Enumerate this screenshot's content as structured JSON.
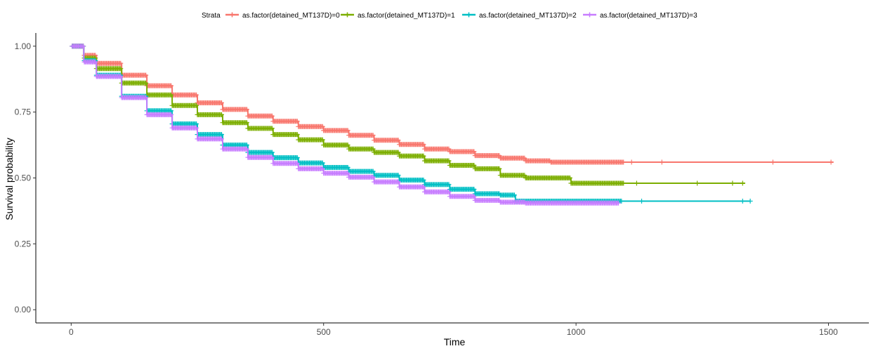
{
  "chart_data": {
    "type": "line",
    "subtype": "kaplan-meier step curves with censor marks",
    "xlabel": "Time",
    "ylabel": "Survival probability",
    "xlim": [
      -70,
      1580
    ],
    "ylim": [
      -0.05,
      1.05
    ],
    "x_ticks": [
      0,
      500,
      1000,
      1500
    ],
    "y_ticks": [
      0.0,
      0.25,
      0.5,
      0.75,
      1.0
    ],
    "y_tick_labels": [
      "0.00",
      "0.25",
      "0.50",
      "0.75",
      "1.00"
    ],
    "grid": false,
    "legend": {
      "title": "Strata",
      "position": "top",
      "entries": [
        "as.factor(detained_MT137D)=0",
        "as.factor(detained_MT137D)=1",
        "as.factor(detained_MT137D)=2",
        "as.factor(detained_MT137D)=3"
      ]
    },
    "series": [
      {
        "name": "as.factor(detained_MT137D)=0",
        "color": "#F8766D",
        "points": [
          [
            0,
            1.0
          ],
          [
            25,
            0.965
          ],
          [
            50,
            0.935
          ],
          [
            100,
            0.89
          ],
          [
            150,
            0.85
          ],
          [
            200,
            0.815
          ],
          [
            250,
            0.785
          ],
          [
            300,
            0.76
          ],
          [
            350,
            0.735
          ],
          [
            400,
            0.715
          ],
          [
            450,
            0.695
          ],
          [
            500,
            0.68
          ],
          [
            550,
            0.662
          ],
          [
            600,
            0.643
          ],
          [
            650,
            0.627
          ],
          [
            700,
            0.61
          ],
          [
            750,
            0.6
          ],
          [
            800,
            0.585
          ],
          [
            850,
            0.575
          ],
          [
            900,
            0.565
          ],
          [
            950,
            0.56
          ],
          [
            1000,
            0.56
          ],
          [
            1090,
            0.56
          ],
          [
            1510,
            0.56
          ]
        ],
        "dense_censor_end": 1095,
        "censor_x": [
          1110,
          1170,
          1390,
          1505
        ]
      },
      {
        "name": "as.factor(detained_MT137D)=1",
        "color": "#7CAE00",
        "points": [
          [
            0,
            1.0
          ],
          [
            25,
            0.955
          ],
          [
            50,
            0.915
          ],
          [
            100,
            0.86
          ],
          [
            150,
            0.815
          ],
          [
            200,
            0.775
          ],
          [
            250,
            0.74
          ],
          [
            300,
            0.71
          ],
          [
            350,
            0.688
          ],
          [
            400,
            0.665
          ],
          [
            450,
            0.645
          ],
          [
            500,
            0.625
          ],
          [
            550,
            0.61
          ],
          [
            600,
            0.597
          ],
          [
            650,
            0.583
          ],
          [
            700,
            0.565
          ],
          [
            750,
            0.548
          ],
          [
            800,
            0.535
          ],
          [
            850,
            0.51
          ],
          [
            900,
            0.5
          ],
          [
            980,
            0.5
          ],
          [
            990,
            0.48
          ],
          [
            1335,
            0.48
          ]
        ],
        "dense_censor_end": 1095,
        "censor_x": [
          1120,
          1240,
          1310,
          1330
        ]
      },
      {
        "name": "as.factor(detained_MT137D)=2",
        "color": "#00BFC4",
        "points": [
          [
            0,
            1.0
          ],
          [
            25,
            0.945
          ],
          [
            50,
            0.89
          ],
          [
            100,
            0.81
          ],
          [
            150,
            0.755
          ],
          [
            200,
            0.705
          ],
          [
            250,
            0.665
          ],
          [
            300,
            0.625
          ],
          [
            350,
            0.597
          ],
          [
            400,
            0.577
          ],
          [
            450,
            0.557
          ],
          [
            500,
            0.54
          ],
          [
            550,
            0.525
          ],
          [
            600,
            0.51
          ],
          [
            650,
            0.492
          ],
          [
            700,
            0.475
          ],
          [
            750,
            0.457
          ],
          [
            800,
            0.44
          ],
          [
            850,
            0.435
          ],
          [
            880,
            0.412
          ],
          [
            960,
            0.412
          ],
          [
            1345,
            0.412
          ]
        ],
        "dense_censor_end": 1090,
        "censor_x": [
          1130,
          1330,
          1345
        ]
      },
      {
        "name": "as.factor(detained_MT137D)=3",
        "color": "#C77CFF",
        "points": [
          [
            0,
            1.0
          ],
          [
            25,
            0.94
          ],
          [
            50,
            0.885
          ],
          [
            100,
            0.805
          ],
          [
            150,
            0.74
          ],
          [
            200,
            0.69
          ],
          [
            250,
            0.648
          ],
          [
            300,
            0.61
          ],
          [
            350,
            0.578
          ],
          [
            400,
            0.555
          ],
          [
            450,
            0.535
          ],
          [
            500,
            0.518
          ],
          [
            550,
            0.503
          ],
          [
            600,
            0.485
          ],
          [
            650,
            0.466
          ],
          [
            700,
            0.447
          ],
          [
            750,
            0.43
          ],
          [
            800,
            0.415
          ],
          [
            850,
            0.408
          ],
          [
            900,
            0.405
          ],
          [
            1085,
            0.405
          ]
        ],
        "dense_censor_end": 1085,
        "censor_x": []
      }
    ]
  }
}
